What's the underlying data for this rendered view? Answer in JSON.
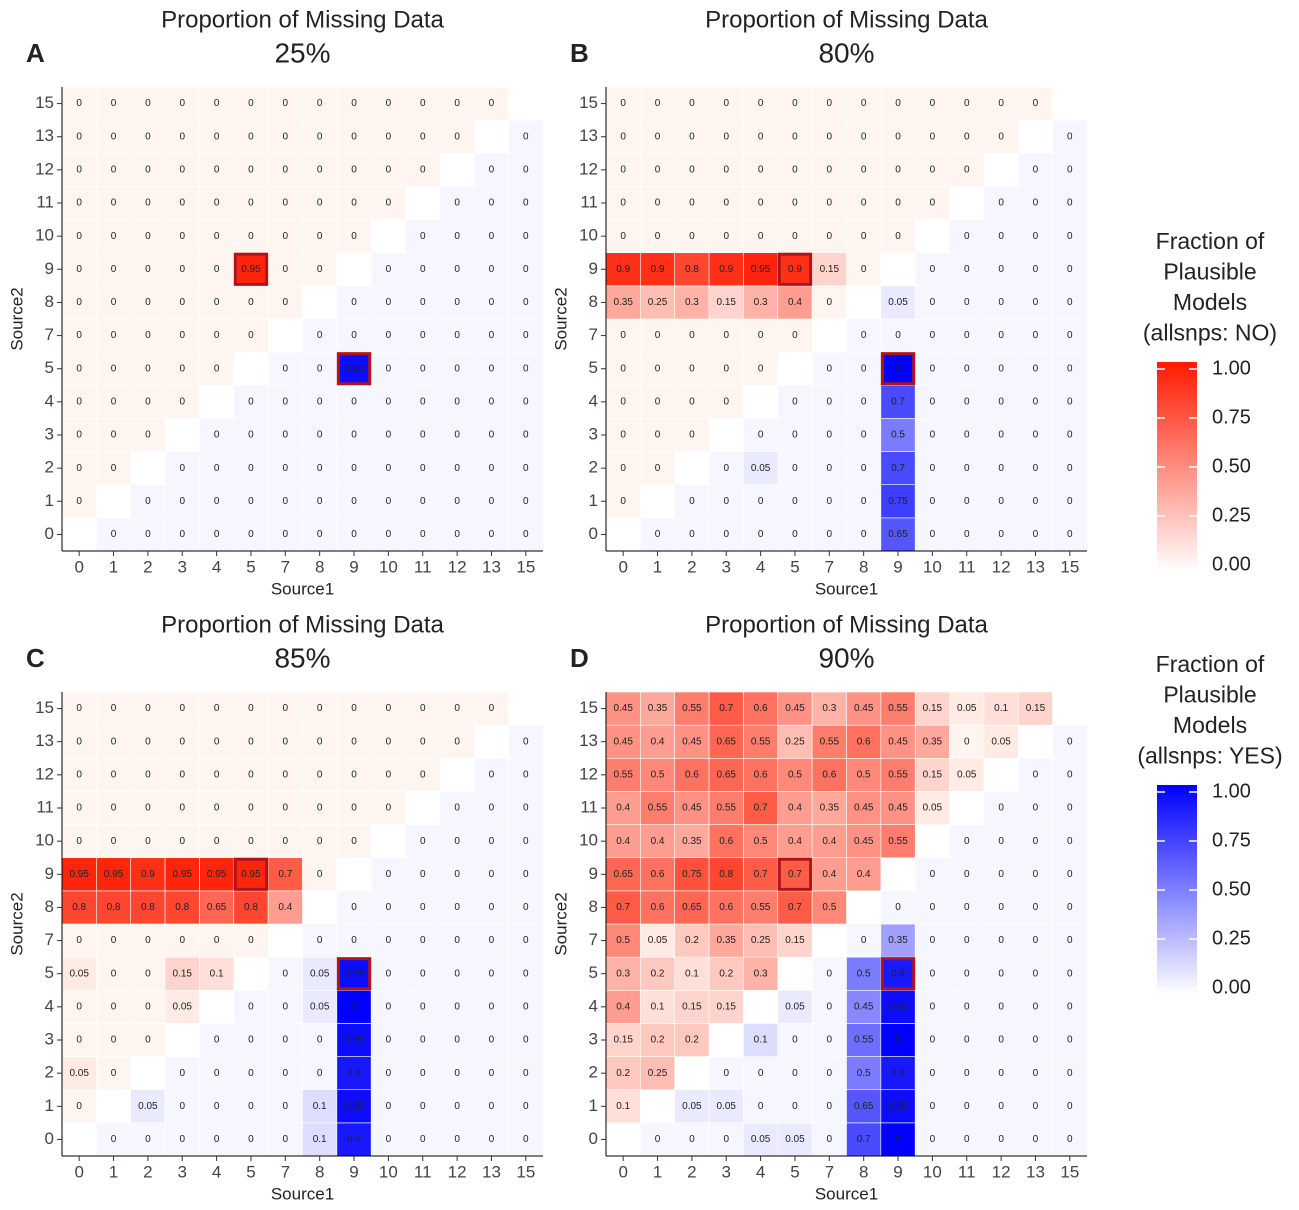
{
  "chart_data": [
    {
      "type": "heatmap",
      "panel": "A",
      "title": "Proportion of Missing Data",
      "subtitle": "25%",
      "x_label": "Source1",
      "y_label": "Source2",
      "categories": [
        "0",
        "1",
        "2",
        "3",
        "4",
        "5",
        "7",
        "8",
        "9",
        "10",
        "11",
        "12",
        "13",
        "15"
      ],
      "highlight": [
        {
          "x": "5",
          "y": "9"
        },
        {
          "x": "9",
          "y": "5"
        }
      ],
      "z": [
        [
          null,
          0,
          0,
          0,
          0,
          0,
          0,
          0,
          0,
          0,
          0,
          0,
          0,
          0
        ],
        [
          0,
          null,
          0,
          0,
          0,
          0,
          0,
          0,
          0,
          0,
          0,
          0,
          0,
          0
        ],
        [
          0,
          0,
          null,
          0,
          0,
          0,
          0,
          0,
          0,
          0,
          0,
          0,
          0,
          0
        ],
        [
          0,
          0,
          0,
          null,
          0,
          0,
          0,
          0,
          0,
          0,
          0,
          0,
          0,
          0
        ],
        [
          0,
          0,
          0,
          0,
          null,
          0,
          0,
          0,
          0,
          0,
          0,
          0,
          0,
          0
        ],
        [
          0,
          0,
          0,
          0,
          0,
          null,
          0,
          0,
          0.95,
          0,
          0,
          0,
          0,
          0
        ],
        [
          0,
          0,
          0,
          0,
          0,
          0,
          null,
          0,
          0,
          0,
          0,
          0,
          0,
          0
        ],
        [
          0,
          0,
          0,
          0,
          0,
          0,
          0,
          null,
          0,
          0,
          0,
          0,
          0,
          0
        ],
        [
          0,
          0,
          0,
          0,
          0,
          0.95,
          0,
          0,
          null,
          0,
          0,
          0,
          0,
          0
        ],
        [
          0,
          0,
          0,
          0,
          0,
          0,
          0,
          0,
          0,
          null,
          0,
          0,
          0,
          0
        ],
        [
          0,
          0,
          0,
          0,
          0,
          0,
          0,
          0,
          0,
          0,
          null,
          0,
          0,
          0
        ],
        [
          0,
          0,
          0,
          0,
          0,
          0,
          0,
          0,
          0,
          0,
          0,
          null,
          0,
          0
        ],
        [
          0,
          0,
          0,
          0,
          0,
          0,
          0,
          0,
          0,
          0,
          0,
          0,
          null,
          0
        ],
        [
          0,
          0,
          0,
          0,
          0,
          0,
          0,
          0,
          0,
          0,
          0,
          0,
          0,
          null
        ]
      ]
    },
    {
      "type": "heatmap",
      "panel": "B",
      "title": "Proportion of Missing Data",
      "subtitle": "80%",
      "x_label": "Source1",
      "y_label": "Source2",
      "categories": [
        "0",
        "1",
        "2",
        "3",
        "4",
        "5",
        "7",
        "8",
        "9",
        "10",
        "11",
        "12",
        "13",
        "15"
      ],
      "highlight": [
        {
          "x": "5",
          "y": "9"
        },
        {
          "x": "9",
          "y": "5"
        }
      ],
      "z": [
        [
          null,
          0,
          0,
          0,
          0,
          0,
          0,
          0,
          0.65,
          0,
          0,
          0,
          0,
          0
        ],
        [
          0,
          null,
          0,
          0,
          0,
          0,
          0,
          0,
          0.75,
          0,
          0,
          0,
          0,
          0
        ],
        [
          0,
          0,
          null,
          0,
          0.05,
          0,
          0,
          0,
          0.7,
          0,
          0,
          0,
          0,
          0
        ],
        [
          0,
          0,
          0,
          null,
          0,
          0,
          0,
          0,
          0.5,
          0,
          0,
          0,
          0,
          0
        ],
        [
          0,
          0,
          0,
          0,
          null,
          0,
          0,
          0,
          0.7,
          0,
          0,
          0,
          0,
          0
        ],
        [
          0,
          0,
          0,
          0,
          0,
          null,
          0,
          0,
          1,
          0,
          0,
          0,
          0,
          0
        ],
        [
          0,
          0,
          0,
          0,
          0,
          0,
          null,
          0,
          0,
          0,
          0,
          0,
          0,
          0
        ],
        [
          0.35,
          0.25,
          0.3,
          0.15,
          0.3,
          0.4,
          0,
          null,
          0.05,
          0,
          0,
          0,
          0,
          0
        ],
        [
          0.9,
          0.9,
          0.8,
          0.9,
          0.95,
          0.9,
          0.15,
          0,
          null,
          0,
          0,
          0,
          0,
          0
        ],
        [
          0,
          0,
          0,
          0,
          0,
          0,
          0,
          0,
          0,
          null,
          0,
          0,
          0,
          0
        ],
        [
          0,
          0,
          0,
          0,
          0,
          0,
          0,
          0,
          0,
          0,
          null,
          0,
          0,
          0
        ],
        [
          0,
          0,
          0,
          0,
          0,
          0,
          0,
          0,
          0,
          0,
          0,
          null,
          0,
          0
        ],
        [
          0,
          0,
          0,
          0,
          0,
          0,
          0,
          0,
          0,
          0,
          0,
          0,
          null,
          0
        ],
        [
          0,
          0,
          0,
          0,
          0,
          0,
          0,
          0,
          0,
          0,
          0,
          0,
          0,
          null
        ]
      ]
    },
    {
      "type": "heatmap",
      "panel": "C",
      "title": "Proportion of Missing Data",
      "subtitle": "85%",
      "x_label": "Source1",
      "y_label": "Source2",
      "categories": [
        "0",
        "1",
        "2",
        "3",
        "4",
        "5",
        "7",
        "8",
        "9",
        "10",
        "11",
        "12",
        "13",
        "15"
      ],
      "highlight": [
        {
          "x": "5",
          "y": "9"
        },
        {
          "x": "9",
          "y": "5"
        }
      ],
      "z": [
        [
          null,
          0,
          0,
          0,
          0,
          0,
          0,
          0.1,
          0.9,
          0,
          0,
          0,
          0,
          0
        ],
        [
          0,
          null,
          0.05,
          0,
          0,
          0,
          0,
          0.1,
          0.95,
          0,
          0,
          0,
          0,
          0
        ],
        [
          0.05,
          0,
          null,
          0,
          0,
          0,
          0,
          0,
          0.9,
          0,
          0,
          0,
          0,
          0
        ],
        [
          0,
          0,
          0,
          null,
          0,
          0,
          0,
          0,
          0.95,
          0,
          0,
          0,
          0,
          0
        ],
        [
          0,
          0,
          0,
          0.05,
          null,
          0,
          0,
          0.05,
          1,
          0,
          0,
          0,
          0,
          0
        ],
        [
          0.05,
          0,
          0,
          0.15,
          0.1,
          null,
          0,
          0.05,
          0.95,
          0,
          0,
          0,
          0,
          0
        ],
        [
          0,
          0,
          0,
          0,
          0,
          0,
          null,
          0,
          0,
          0,
          0,
          0,
          0,
          0
        ],
        [
          0.8,
          0.8,
          0.8,
          0.8,
          0.65,
          0.8,
          0.4,
          null,
          0,
          0,
          0,
          0,
          0,
          0
        ],
        [
          0.95,
          0.95,
          0.9,
          0.95,
          0.95,
          0.95,
          0.7,
          0,
          null,
          0,
          0,
          0,
          0,
          0
        ],
        [
          0,
          0,
          0,
          0,
          0,
          0,
          0,
          0,
          0,
          null,
          0,
          0,
          0,
          0
        ],
        [
          0,
          0,
          0,
          0,
          0,
          0,
          0,
          0,
          0,
          0,
          null,
          0,
          0,
          0
        ],
        [
          0,
          0,
          0,
          0,
          0,
          0,
          0,
          0,
          0,
          0,
          0,
          null,
          0,
          0
        ],
        [
          0,
          0,
          0,
          0,
          0,
          0,
          0,
          0,
          0,
          0,
          0,
          0,
          null,
          0
        ],
        [
          0,
          0,
          0,
          0,
          0,
          0,
          0,
          0,
          0,
          0,
          0,
          0,
          0,
          null
        ]
      ]
    },
    {
      "type": "heatmap",
      "panel": "D",
      "title": "Proportion of Missing Data",
      "subtitle": "90%",
      "x_label": "Source1",
      "y_label": "Source2",
      "categories": [
        "0",
        "1",
        "2",
        "3",
        "4",
        "5",
        "7",
        "8",
        "9",
        "10",
        "11",
        "12",
        "13",
        "15"
      ],
      "highlight": [
        {
          "x": "5",
          "y": "9"
        },
        {
          "x": "9",
          "y": "5"
        }
      ],
      "z": [
        [
          null,
          0,
          0,
          0,
          0.05,
          0.05,
          0,
          0.7,
          1,
          0,
          0,
          0,
          0,
          0
        ],
        [
          0.1,
          null,
          0.05,
          0.05,
          0,
          0,
          0,
          0.65,
          0.95,
          0,
          0,
          0,
          0,
          0
        ],
        [
          0.2,
          0.25,
          null,
          0,
          0,
          0,
          0,
          0.5,
          0.9,
          0,
          0,
          0,
          0,
          0
        ],
        [
          0.15,
          0.2,
          0.2,
          null,
          0.1,
          0,
          0,
          0.55,
          1,
          0,
          0,
          0,
          0,
          0
        ],
        [
          0.4,
          0.1,
          0.15,
          0.15,
          null,
          0.05,
          0,
          0.45,
          0.95,
          0,
          0,
          0,
          0,
          0
        ],
        [
          0.3,
          0.2,
          0.1,
          0.2,
          0.3,
          null,
          0,
          0.5,
          0.9,
          0,
          0,
          0,
          0,
          0
        ],
        [
          0.5,
          0.05,
          0.2,
          0.35,
          0.25,
          0.15,
          null,
          0,
          0.35,
          0,
          0,
          0,
          0,
          0
        ],
        [
          0.7,
          0.6,
          0.65,
          0.6,
          0.55,
          0.7,
          0.5,
          null,
          0,
          0,
          0,
          0,
          0,
          0
        ],
        [
          0.65,
          0.6,
          0.75,
          0.8,
          0.7,
          0.7,
          0.4,
          0.4,
          null,
          0,
          0,
          0,
          0,
          0
        ],
        [
          0.4,
          0.4,
          0.35,
          0.6,
          0.5,
          0.4,
          0.4,
          0.45,
          0.55,
          null,
          0,
          0,
          0,
          0
        ],
        [
          0.4,
          0.55,
          0.45,
          0.55,
          0.7,
          0.4,
          0.35,
          0.45,
          0.45,
          0.05,
          null,
          0,
          0,
          0
        ],
        [
          0.55,
          0.5,
          0.6,
          0.65,
          0.6,
          0.5,
          0.6,
          0.5,
          0.55,
          0.15,
          0.05,
          null,
          0,
          0
        ],
        [
          0.45,
          0.4,
          0.45,
          0.65,
          0.55,
          0.25,
          0.55,
          0.6,
          0.45,
          0.35,
          0,
          0.05,
          null,
          0
        ],
        [
          0.45,
          0.35,
          0.55,
          0.7,
          0.6,
          0.45,
          0.3,
          0.45,
          0.55,
          0.15,
          0.05,
          0.1,
          0.15,
          null
        ]
      ]
    }
  ],
  "legends": [
    {
      "title": [
        "Fraction of",
        "Plausible",
        "Models",
        "(allsnps: NO)"
      ],
      "triangle": "upper",
      "low_color": "#fff5f0",
      "high_color": "#ff1a00",
      "lim": [
        0,
        1
      ],
      "ticks": [
        {
          "value": 0,
          "label": "0.00"
        },
        {
          "value": 0.25,
          "label": "0.25"
        },
        {
          "value": 0.5,
          "label": "0.50"
        },
        {
          "value": 0.75,
          "label": "0.75"
        },
        {
          "value": 1,
          "label": "1.00"
        }
      ]
    },
    {
      "title": [
        "Fraction of",
        "Plausible",
        "Models",
        "(allsnps: YES)"
      ],
      "triangle": "lower",
      "low_color": "#f6f6ff",
      "high_color": "#0000ff",
      "lim": [
        0,
        1
      ],
      "ticks": [
        {
          "value": 0,
          "label": "0.00"
        },
        {
          "value": 0.25,
          "label": "0.25"
        },
        {
          "value": 0.5,
          "label": "0.50"
        },
        {
          "value": 0.75,
          "label": "0.75"
        },
        {
          "value": 1,
          "label": "1.00"
        }
      ]
    }
  ]
}
